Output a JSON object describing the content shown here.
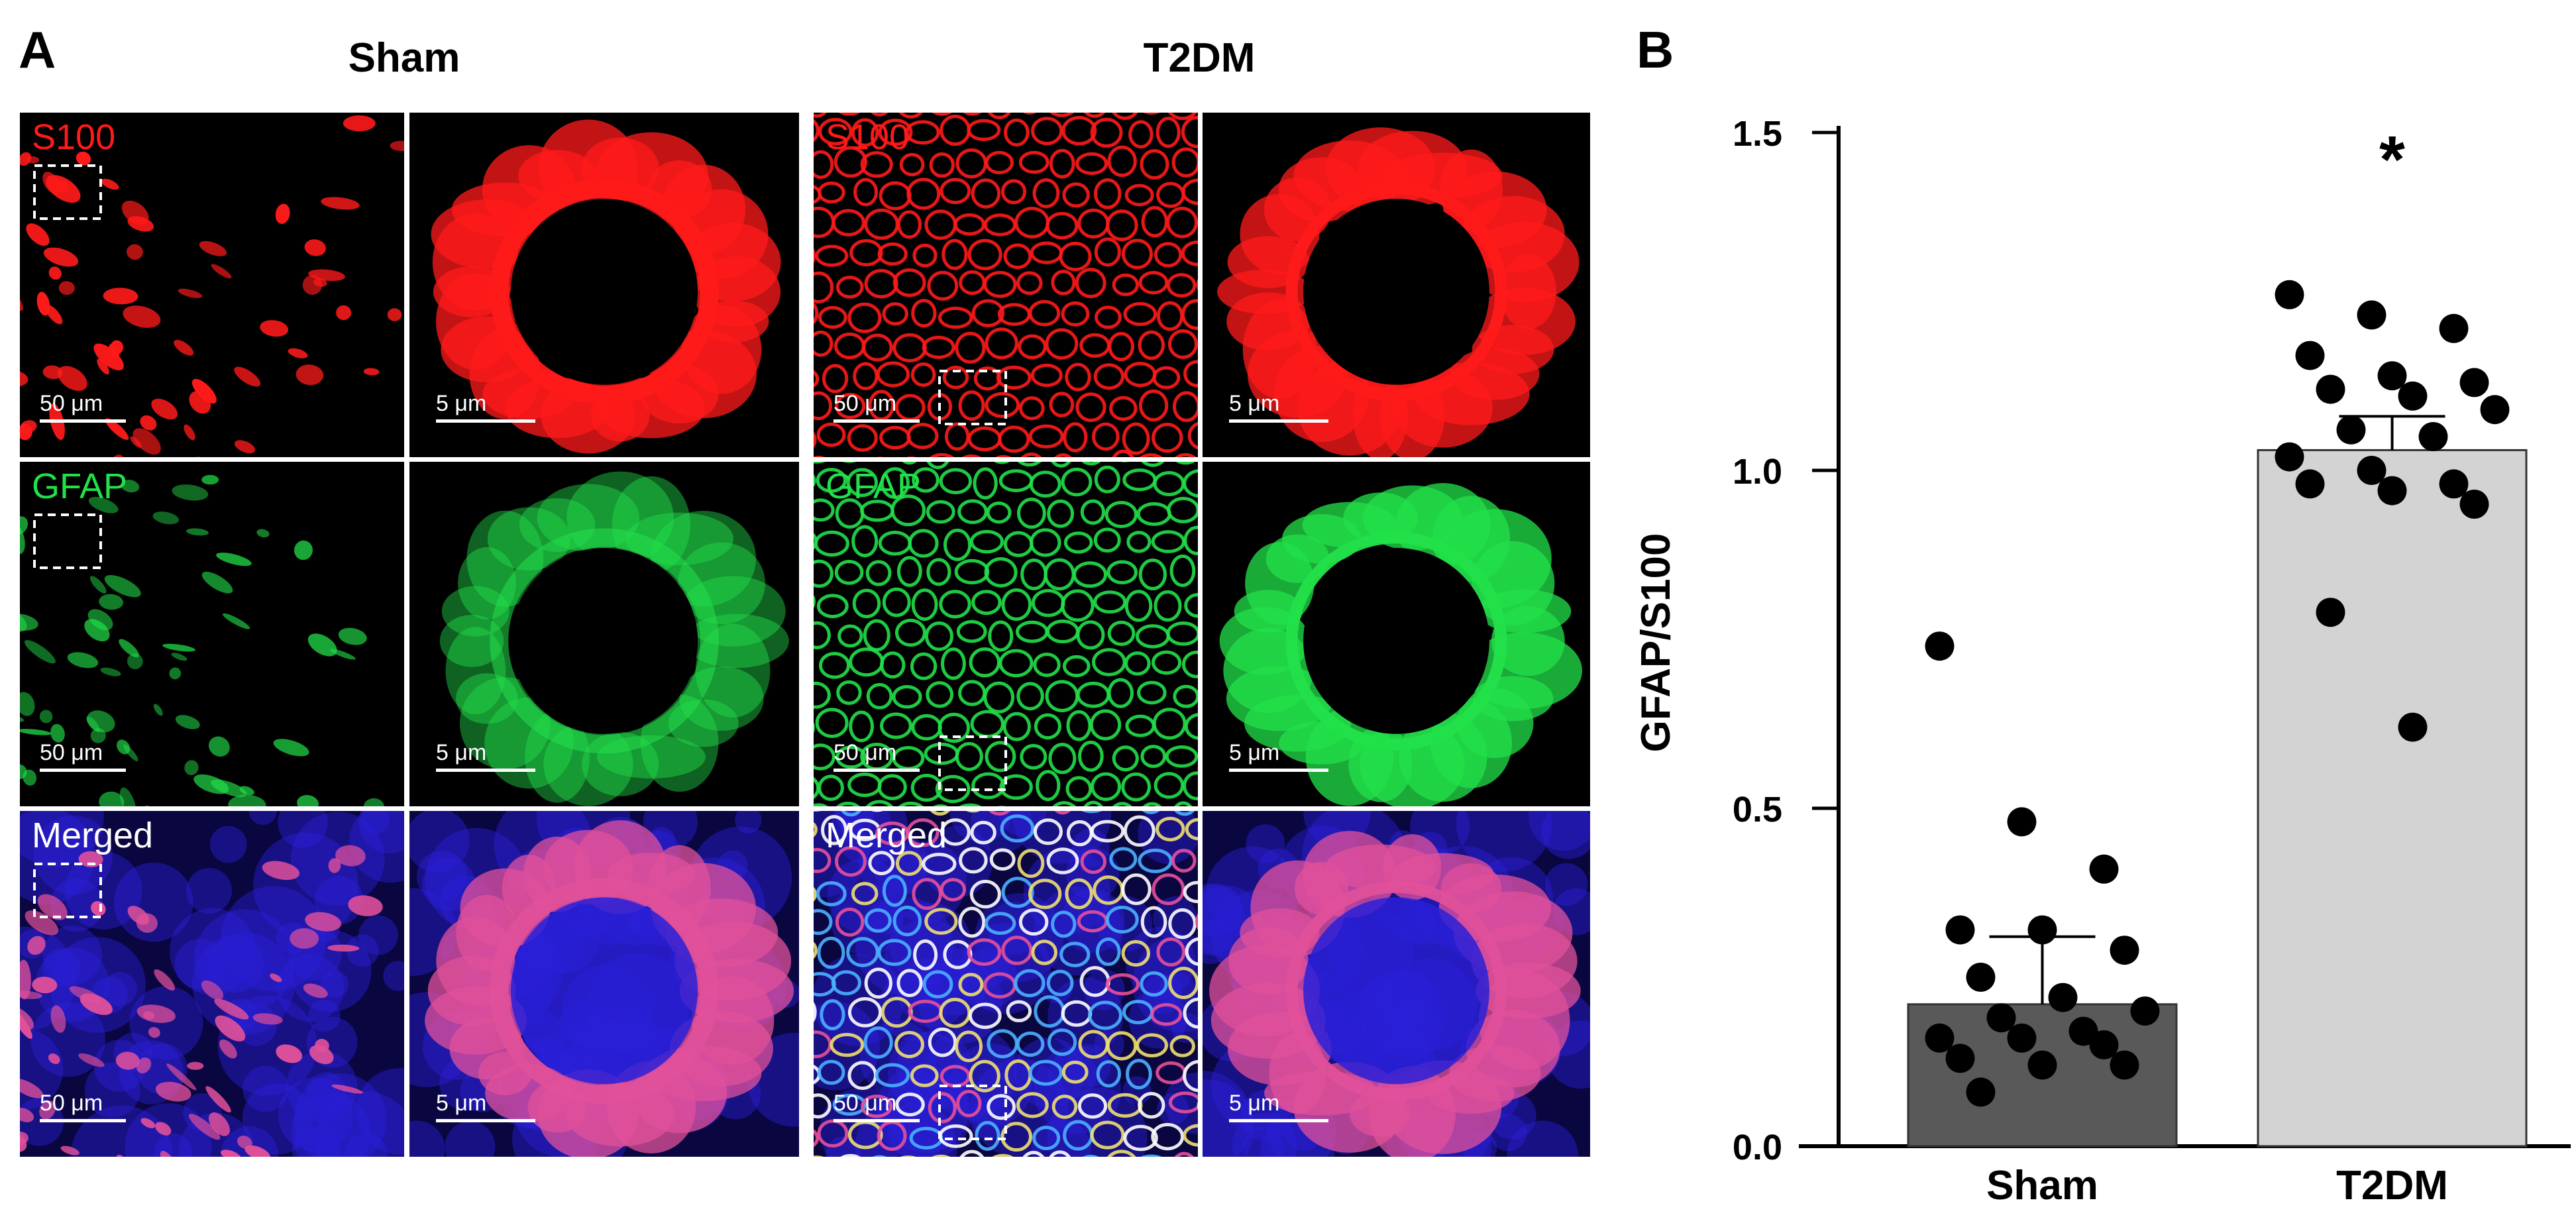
{
  "panel_a": {
    "letter": "A",
    "groups": [
      "Sham",
      "T2DM"
    ],
    "channels": [
      "S100",
      "GFAP",
      "Merged"
    ],
    "scale_overview": "50 μm",
    "scale_zoom": "5 μm",
    "colors": {
      "s100": "#ff1a1a",
      "gfap": "#22e04a",
      "merged_blue": "#2a20d8",
      "merged_pink": "#e0509a"
    }
  },
  "panel_b": {
    "letter": "B"
  },
  "chart_data": {
    "type": "bar",
    "categories": [
      "Sham",
      "T2DM"
    ],
    "values": [
      0.21,
      1.03
    ],
    "sem": [
      0.1,
      0.05
    ],
    "ylabel": "GFAP/S100",
    "ylim": [
      0,
      1.5
    ],
    "yticks": [
      0.0,
      0.5,
      1.0,
      1.5
    ],
    "yticklabels": [
      "0.0",
      "0.5",
      "1.0",
      "1.5"
    ],
    "bar_colors": [
      "#595959",
      "#d3d3d3"
    ],
    "significance": [
      {
        "category": "T2DM",
        "label": "*"
      }
    ],
    "points": [
      {
        "category": "Sham",
        "values": [
          0.74,
          0.48,
          0.41,
          0.32,
          0.32,
          0.29,
          0.25,
          0.22,
          0.2,
          0.19,
          0.17,
          0.16,
          0.16,
          0.15,
          0.13,
          0.12,
          0.12,
          0.08
        ]
      },
      {
        "category": "T2DM",
        "values": [
          1.26,
          1.23,
          1.21,
          1.17,
          1.14,
          1.13,
          1.12,
          1.11,
          1.09,
          1.06,
          1.05,
          1.02,
          1.0,
          0.98,
          0.98,
          0.97,
          0.95,
          0.79,
          0.62
        ]
      }
    ],
    "grid": false,
    "legend": "none"
  }
}
